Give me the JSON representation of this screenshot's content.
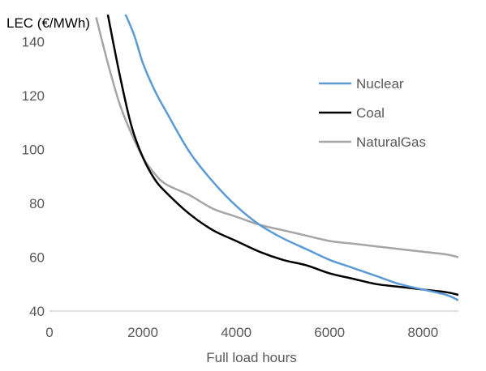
{
  "chart_data": {
    "type": "line",
    "title": "",
    "xlabel": "Full load hours",
    "ylabel": "LEC (€/MWh)",
    "xlim": [
      0,
      8760
    ],
    "ylim": [
      40,
      150
    ],
    "xticks": [
      0,
      2000,
      4000,
      6000,
      8000
    ],
    "yticks": [
      40,
      60,
      80,
      100,
      120,
      140
    ],
    "grid": "none",
    "legend_position": "right",
    "series": [
      {
        "name": "Nuclear",
        "color": "#5B9BD5",
        "x": [
          1500,
          1800,
          2000,
          2250,
          2500,
          3000,
          3500,
          4000,
          4500,
          5000,
          5500,
          6000,
          6500,
          7000,
          7500,
          8000,
          8500,
          8760
        ],
        "y": [
          155,
          143,
          132,
          122,
          114,
          99,
          88,
          79,
          72,
          67,
          63,
          59,
          56,
          53,
          50,
          48,
          46,
          44
        ]
      },
      {
        "name": "Coal",
        "color": "#000000",
        "x": [
          1250,
          1500,
          1750,
          2000,
          2250,
          2500,
          3000,
          3500,
          4000,
          4500,
          5000,
          5500,
          6000,
          6500,
          7000,
          7500,
          8000,
          8500,
          8760
        ],
        "y": [
          150,
          128,
          109,
          97,
          89,
          84,
          76,
          70,
          66,
          62,
          59,
          57,
          54,
          52,
          50,
          49,
          48,
          47,
          46
        ]
      },
      {
        "name": "NaturalGas",
        "color": "#A5A5A5",
        "x": [
          1000,
          1250,
          1500,
          1750,
          2000,
          2250,
          2500,
          3000,
          3500,
          4000,
          4500,
          5000,
          5500,
          6000,
          6500,
          7000,
          7500,
          8000,
          8500,
          8760
        ],
        "y": [
          149,
          132,
          117,
          106,
          97,
          91,
          87,
          83,
          78,
          75,
          72,
          70,
          68,
          66,
          65,
          64,
          63,
          62,
          61,
          60
        ]
      }
    ]
  }
}
